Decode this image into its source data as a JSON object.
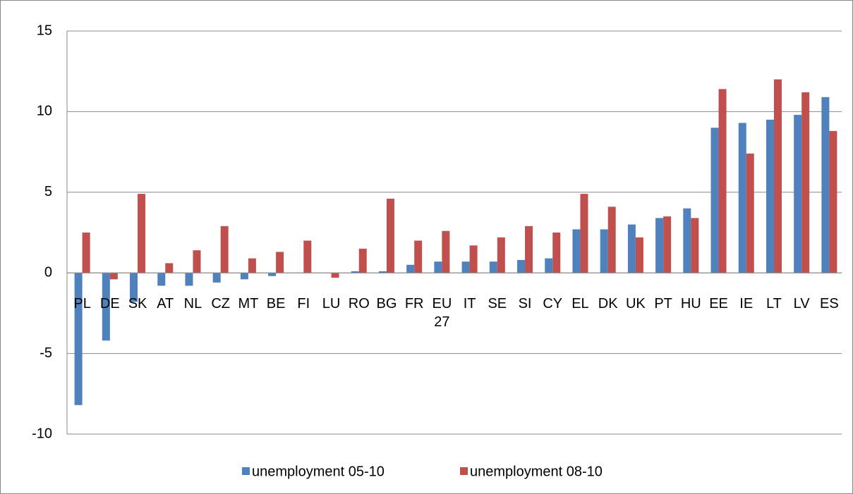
{
  "chart_data": {
    "type": "bar",
    "categories": [
      "PL",
      "DE",
      "SK",
      "AT",
      "NL",
      "CZ",
      "MT",
      "BE",
      "FI",
      "LU",
      "RO",
      "BG",
      "FR",
      "EU 27",
      "IT",
      "SE",
      "SI",
      "CY",
      "EL",
      "DK",
      "UK",
      "PT",
      "HU",
      "EE",
      "IE",
      "LT",
      "LV",
      "ES"
    ],
    "series": [
      {
        "name": "unemployment 05-10",
        "color": "#4f81bd",
        "values": [
          -8.2,
          -4.2,
          -1.8,
          -0.8,
          -0.8,
          -0.6,
          -0.4,
          -0.2,
          0,
          0,
          0.1,
          0.1,
          0.5,
          0.7,
          0.7,
          0.7,
          0.8,
          0.9,
          2.7,
          2.7,
          3.0,
          3.4,
          4.0,
          9.0,
          9.3,
          9.5,
          9.8,
          10.9
        ]
      },
      {
        "name": "unemployment 08-10",
        "color": "#c0504d",
        "values": [
          2.5,
          -0.4,
          4.9,
          0.6,
          1.4,
          2.9,
          0.9,
          1.3,
          2.0,
          -0.3,
          1.5,
          4.6,
          2.0,
          2.6,
          1.7,
          2.2,
          2.9,
          2.5,
          4.9,
          4.1,
          2.2,
          3.5,
          3.4,
          11.4,
          7.4,
          12.0,
          11.2,
          8.8
        ]
      }
    ],
    "ylim": [
      -10,
      15
    ],
    "yticks": [
      -10,
      -5,
      0,
      5,
      10,
      15
    ],
    "grid": true
  }
}
